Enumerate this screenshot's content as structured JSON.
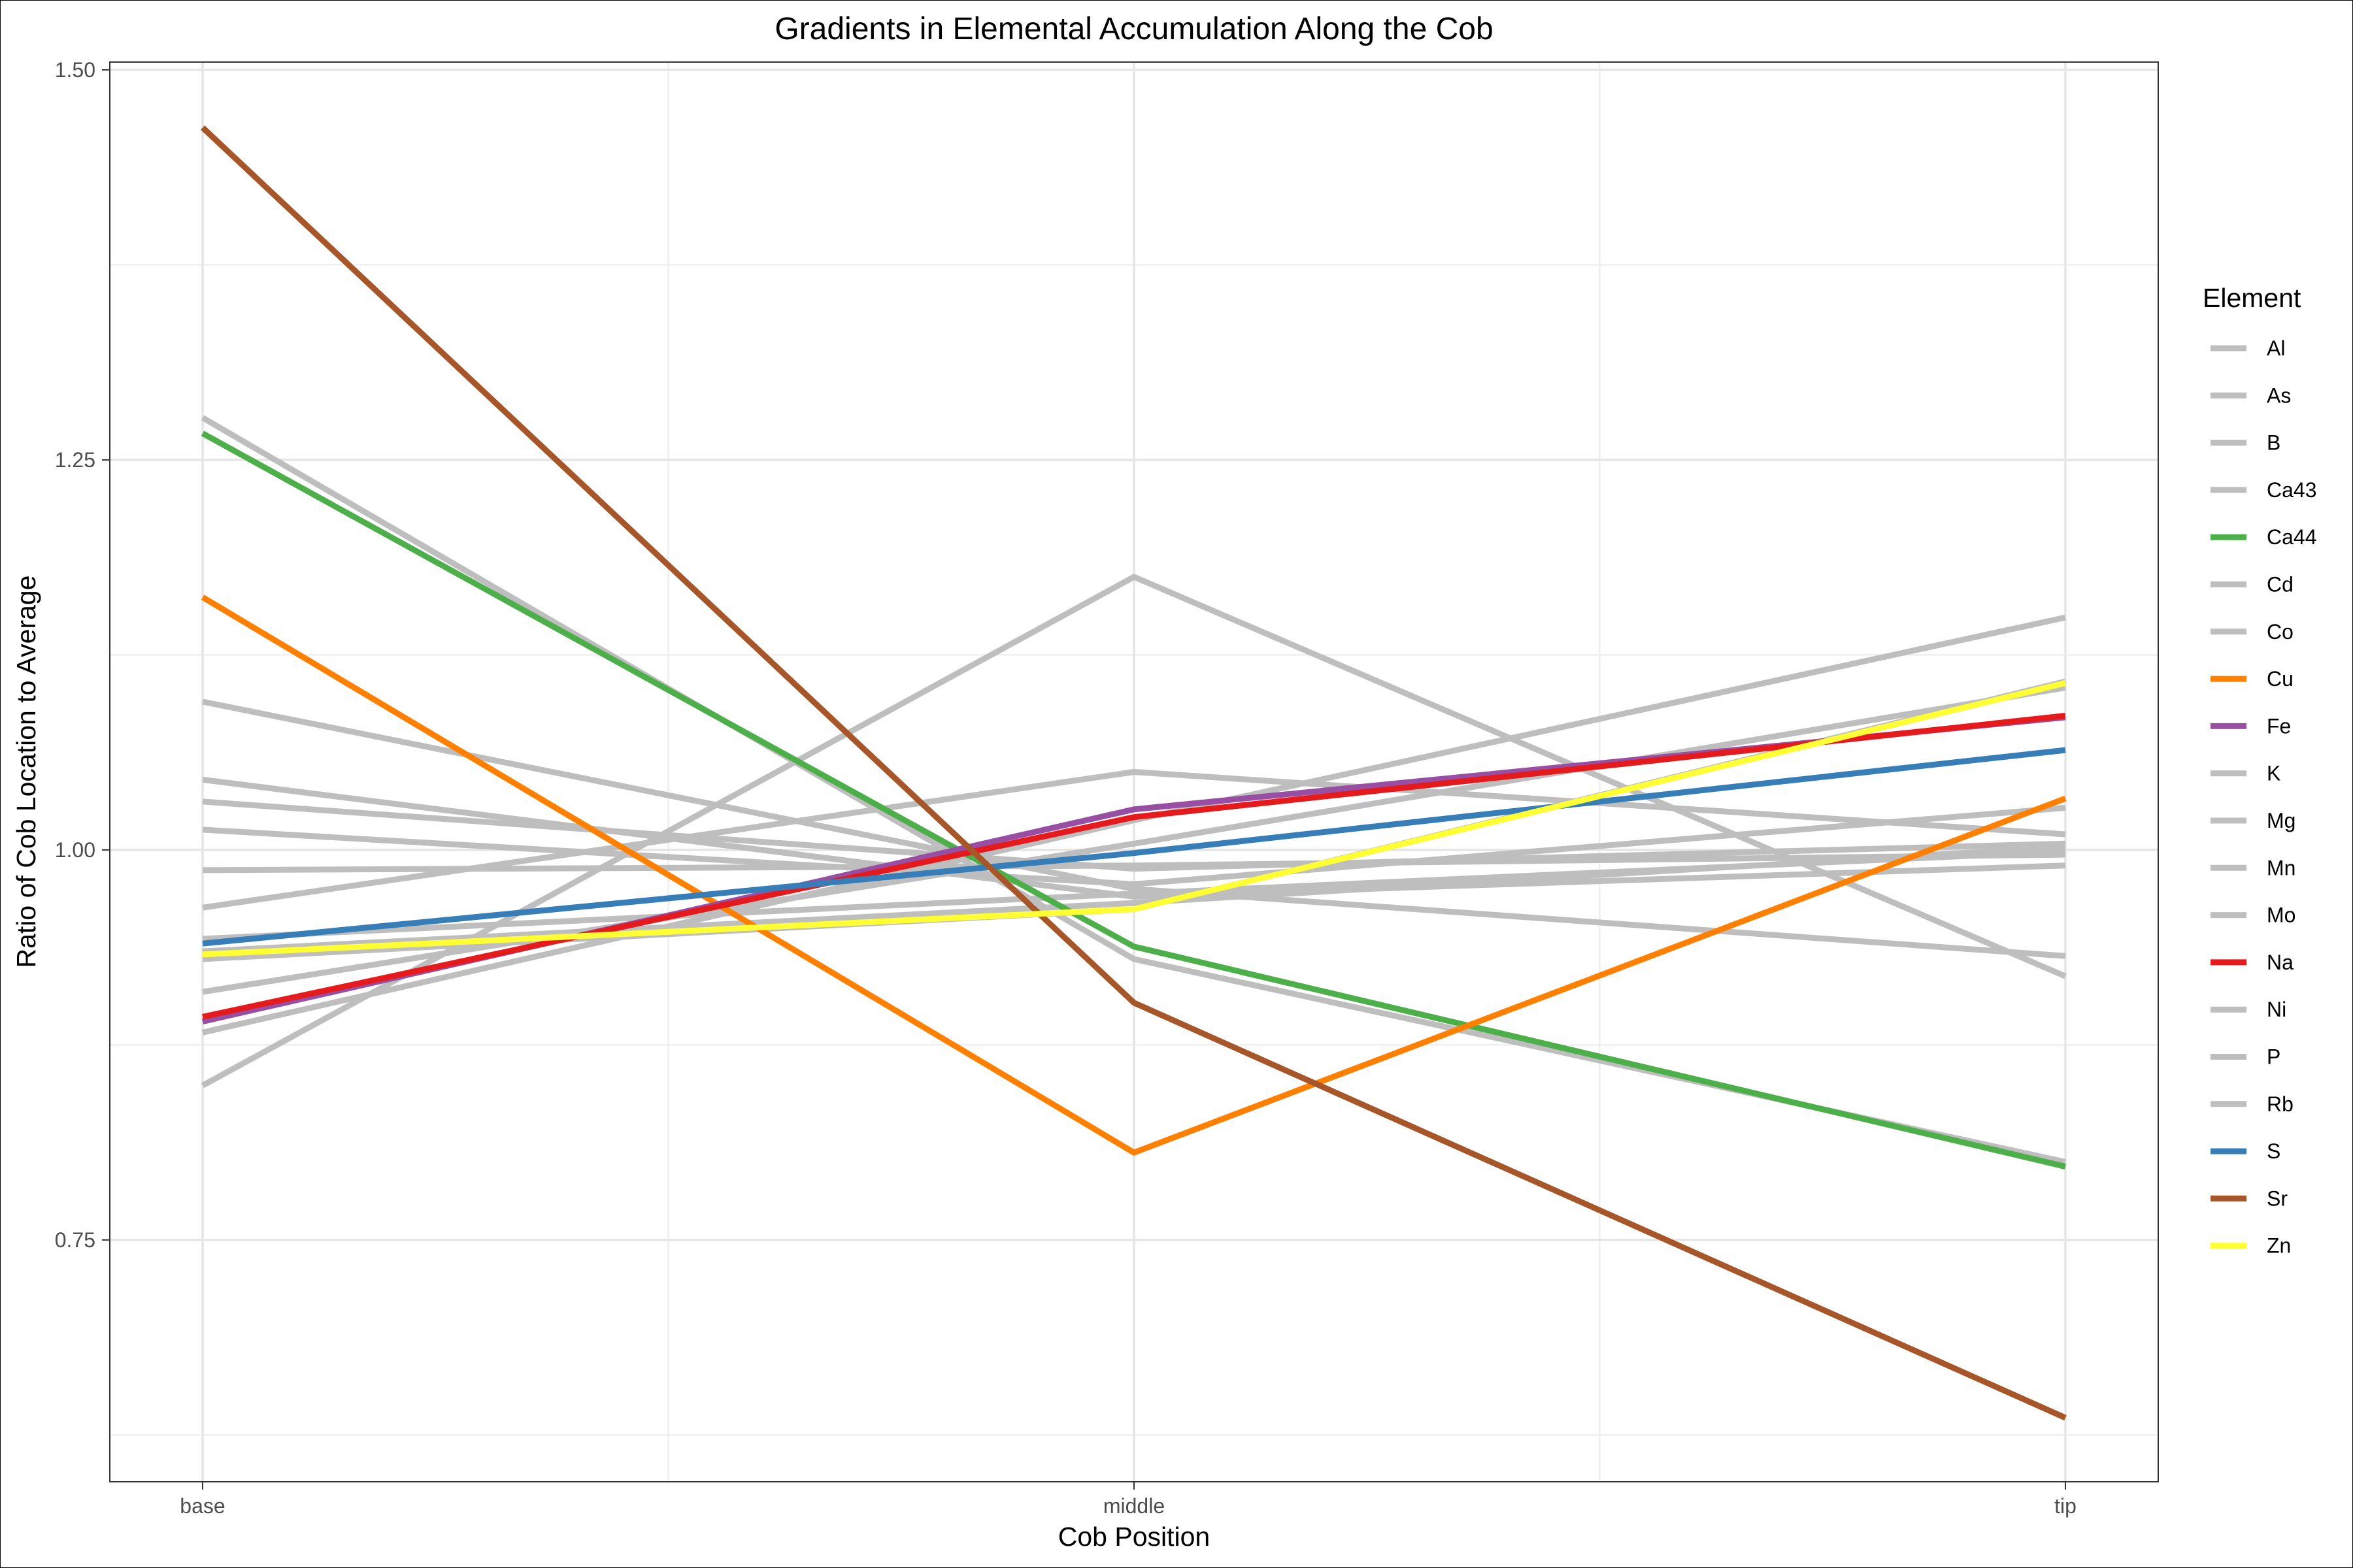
{
  "chart_data": {
    "type": "line",
    "title": "Gradients in Elemental Accumulation Along the Cob",
    "xlabel": "Cob Position",
    "ylabel": "Ratio of Cob Location to Average",
    "categories": [
      "base",
      "middle",
      "tip"
    ],
    "ylim": [
      0.595,
      1.505
    ],
    "yticks": [
      0.75,
      1.0,
      1.25,
      1.5
    ],
    "ytick_labels": [
      "0.75",
      "1.00",
      "1.25",
      "1.50"
    ],
    "grid": true,
    "legend": {
      "title": "Element",
      "position": "right"
    },
    "series": [
      {
        "name": "Al",
        "color": "#bebebe",
        "values": [
          0.909,
          1.004,
          1.104
        ]
      },
      {
        "name": "As",
        "color": "#bebebe",
        "values": [
          0.987,
          0.99,
          0.997
        ]
      },
      {
        "name": "B",
        "color": "#bebebe",
        "values": [
          1.031,
          0.988,
          1.004
        ]
      },
      {
        "name": "Ca43",
        "color": "#bebebe",
        "values": [
          1.277,
          0.93,
          0.8
        ]
      },
      {
        "name": "Ca44",
        "color": "#4daf4a",
        "values": [
          1.267,
          0.938,
          0.797
        ]
      },
      {
        "name": "Cd",
        "color": "#bebebe",
        "values": [
          0.849,
          1.175,
          0.919
        ]
      },
      {
        "name": "Co",
        "color": "#bebebe",
        "values": [
          0.963,
          1.05,
          1.01
        ]
      },
      {
        "name": "Cu",
        "color": "#ff7f00",
        "values": [
          1.162,
          0.806,
          1.033
        ]
      },
      {
        "name": "Fe",
        "color": "#984ea3",
        "values": [
          0.89,
          1.026,
          1.085
        ]
      },
      {
        "name": "K",
        "color": "#bebebe",
        "values": [
          1.095,
          0.975,
          0.932
        ]
      },
      {
        "name": "Mg",
        "color": "#bebebe",
        "values": [
          0.93,
          0.962,
          1.108
        ]
      },
      {
        "name": "Mn",
        "color": "#bebebe",
        "values": [
          1.013,
          0.978,
          1.027
        ]
      },
      {
        "name": "Mo",
        "color": "#bebebe",
        "values": [
          0.883,
          1.019,
          1.149
        ]
      },
      {
        "name": "Na",
        "color": "#e41a1c",
        "values": [
          0.893,
          1.021,
          1.086
        ]
      },
      {
        "name": "Ni",
        "color": "#bebebe",
        "values": [
          0.943,
          0.972,
          0.999
        ]
      },
      {
        "name": "P",
        "color": "#bebebe",
        "values": [
          1.045,
          0.97,
          0.99
        ]
      },
      {
        "name": "Rb",
        "color": "#bebebe",
        "values": [
          0.935,
          0.966,
          1.002
        ]
      },
      {
        "name": "S",
        "color": "#377eb8",
        "values": [
          0.94,
          0.998,
          1.064
        ]
      },
      {
        "name": "Sr",
        "color": "#a65628",
        "values": [
          1.463,
          0.902,
          0.636
        ]
      },
      {
        "name": "Zn",
        "color": "#ffff33",
        "values": [
          0.933,
          0.962,
          1.107
        ]
      }
    ]
  }
}
